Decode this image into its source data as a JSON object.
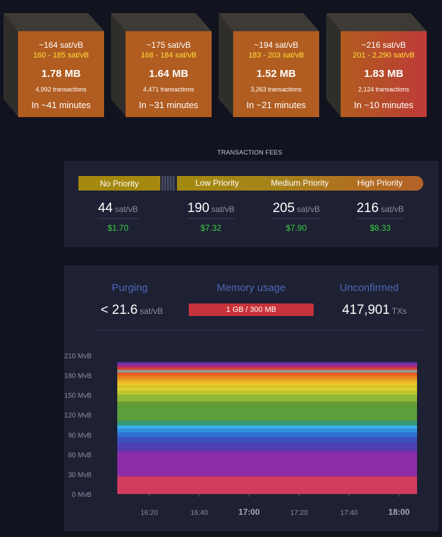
{
  "blocks": [
    {
      "fee": "~164 sat/vB",
      "range": "160 - 185 sat/vB",
      "size": "1.78 MB",
      "txs": "4,992 transactions",
      "eta": "In ~41 minutes",
      "color": "#b15c20"
    },
    {
      "fee": "~175 sat/vB",
      "range": "168 - 184 sat/vB",
      "size": "1.64 MB",
      "txs": "4,471 transactions",
      "eta": "In ~31 minutes",
      "color": "#b15c20"
    },
    {
      "fee": "~194 sat/vB",
      "range": "183 - 203 sat/vB",
      "size": "1.52 MB",
      "txs": "3,263 transactions",
      "eta": "In ~21 minutes",
      "color": "#b15c20"
    },
    {
      "fee": "~216 sat/vB",
      "range": "201 - 2,290 sat/vB",
      "size": "1.83 MB",
      "txs": "2,124 transactions",
      "eta": "In ~10 minutes",
      "color": "#b94a2f"
    }
  ],
  "fees": {
    "title": "TRANSACTION FEES",
    "labels": {
      "none": "No Priority",
      "low": "Low Priority",
      "medium": "Medium Priority",
      "high": "High Priority"
    },
    "unit": "sat/vB",
    "values": [
      {
        "sat": "44",
        "usd": "$1.70"
      },
      {
        "sat": "190",
        "usd": "$7.32"
      },
      {
        "sat": "205",
        "usd": "$7.90"
      },
      {
        "sat": "216",
        "usd": "$8.33"
      }
    ]
  },
  "stats": {
    "purging": {
      "label": "Purging",
      "value": "< 21.6",
      "unit": "sat/vB"
    },
    "memory": {
      "label": "Memory usage",
      "value": "1 GB / 300 MB"
    },
    "unconfirmed": {
      "label": "Unconfirmed",
      "value": "417,901",
      "unit": "TXs"
    }
  },
  "chart_data": {
    "type": "area",
    "ylabel_unit": "MvB",
    "yticks": [
      "0 MvB",
      "30 MvB",
      "60 MvB",
      "90 MvB",
      "120 MvB",
      "150 MvB",
      "180 MvB",
      "210 MvB"
    ],
    "ylim": [
      0,
      210
    ],
    "xticks": [
      {
        "label": "16:20",
        "bold": false
      },
      {
        "label": "16:40",
        "bold": false
      },
      {
        "label": "17:00",
        "bold": true
      },
      {
        "label": "17:20",
        "bold": false
      },
      {
        "label": "17:40",
        "bold": false
      },
      {
        "label": "18:00",
        "bold": true
      }
    ],
    "layers": [
      {
        "to": 27,
        "color": "#d23c5e"
      },
      {
        "to": 62,
        "color": "#8e2da9"
      },
      {
        "to": 67,
        "color": "#7432b0"
      },
      {
        "to": 78,
        "color": "#4e3fb4"
      },
      {
        "to": 86,
        "color": "#3a53c0"
      },
      {
        "to": 93,
        "color": "#2f6fd0"
      },
      {
        "to": 99,
        "color": "#2e8fe0"
      },
      {
        "to": 104,
        "color": "#3ab2ee"
      },
      {
        "to": 111,
        "color": "#359a78"
      },
      {
        "to": 135,
        "color": "#5c9e3c"
      },
      {
        "to": 140,
        "color": "#6a9c33"
      },
      {
        "to": 150,
        "color": "#8fb737"
      },
      {
        "to": 156,
        "color": "#b9c72f"
      },
      {
        "to": 163,
        "color": "#d8cf2f"
      },
      {
        "to": 168,
        "color": "#e8c92a"
      },
      {
        "to": 173,
        "color": "#eeb525"
      },
      {
        "to": 176,
        "color": "#ef9b22"
      },
      {
        "to": 180,
        "color": "#ec7b20"
      },
      {
        "to": 184,
        "color": "#e85a1e"
      },
      {
        "to": 188,
        "color": "#9a9a9a"
      },
      {
        "to": 191,
        "color": "#d94a34"
      },
      {
        "to": 194,
        "color": "#c12f66"
      },
      {
        "to": 197,
        "color": "#9b2f98"
      },
      {
        "to": 199,
        "color": "#6d33ad"
      },
      {
        "to": 200,
        "color": "#4236a8"
      }
    ]
  }
}
